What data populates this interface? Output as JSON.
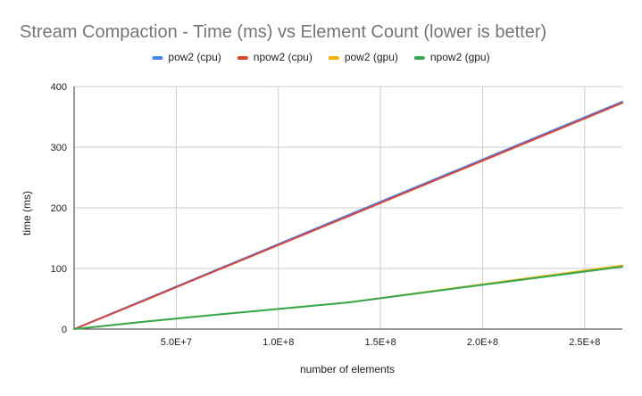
{
  "chart_data": {
    "type": "line",
    "title": "Stream Compaction - Time (ms) vs Element Count (lower is better)",
    "xlabel": "number of elements",
    "ylabel": "time (ms)",
    "xlim": [
      0,
      268435456
    ],
    "ylim": [
      0,
      400
    ],
    "x_ticks": [
      {
        "value": 50000000,
        "label": "5.0E+7"
      },
      {
        "value": 100000000,
        "label": "1.0E+8"
      },
      {
        "value": 150000000,
        "label": "1.5E+8"
      },
      {
        "value": 200000000,
        "label": "2.0E+8"
      },
      {
        "value": 250000000,
        "label": "2.5E+8"
      }
    ],
    "y_ticks": [
      {
        "value": 0,
        "label": "0"
      },
      {
        "value": 100,
        "label": "100"
      },
      {
        "value": 200,
        "label": "200"
      },
      {
        "value": 300,
        "label": "300"
      },
      {
        "value": 400,
        "label": "400"
      }
    ],
    "grid": true,
    "legend_position": "top",
    "series": [
      {
        "name": "pow2 (cpu)",
        "color": "#4285F4",
        "x": [
          0,
          33554432,
          67108864,
          134217728,
          268435456
        ],
        "y": [
          0,
          47,
          94,
          188,
          375
        ]
      },
      {
        "name": "npow2 (cpu)",
        "color": "#DB4437",
        "x": [
          0,
          33554432,
          67108864,
          134217728,
          268435456
        ],
        "y": [
          0,
          46,
          93,
          186,
          373
        ]
      },
      {
        "name": "pow2 (gpu)",
        "color": "#F4B400",
        "x": [
          0,
          33554432,
          67108864,
          134217728,
          268435456
        ],
        "y": [
          0,
          12,
          23,
          44,
          105
        ]
      },
      {
        "name": "npow2 (gpu)",
        "color": "#34A853",
        "x": [
          0,
          33554432,
          67108864,
          134217728,
          268435456
        ],
        "y": [
          0,
          12,
          23,
          44,
          103
        ]
      }
    ]
  }
}
